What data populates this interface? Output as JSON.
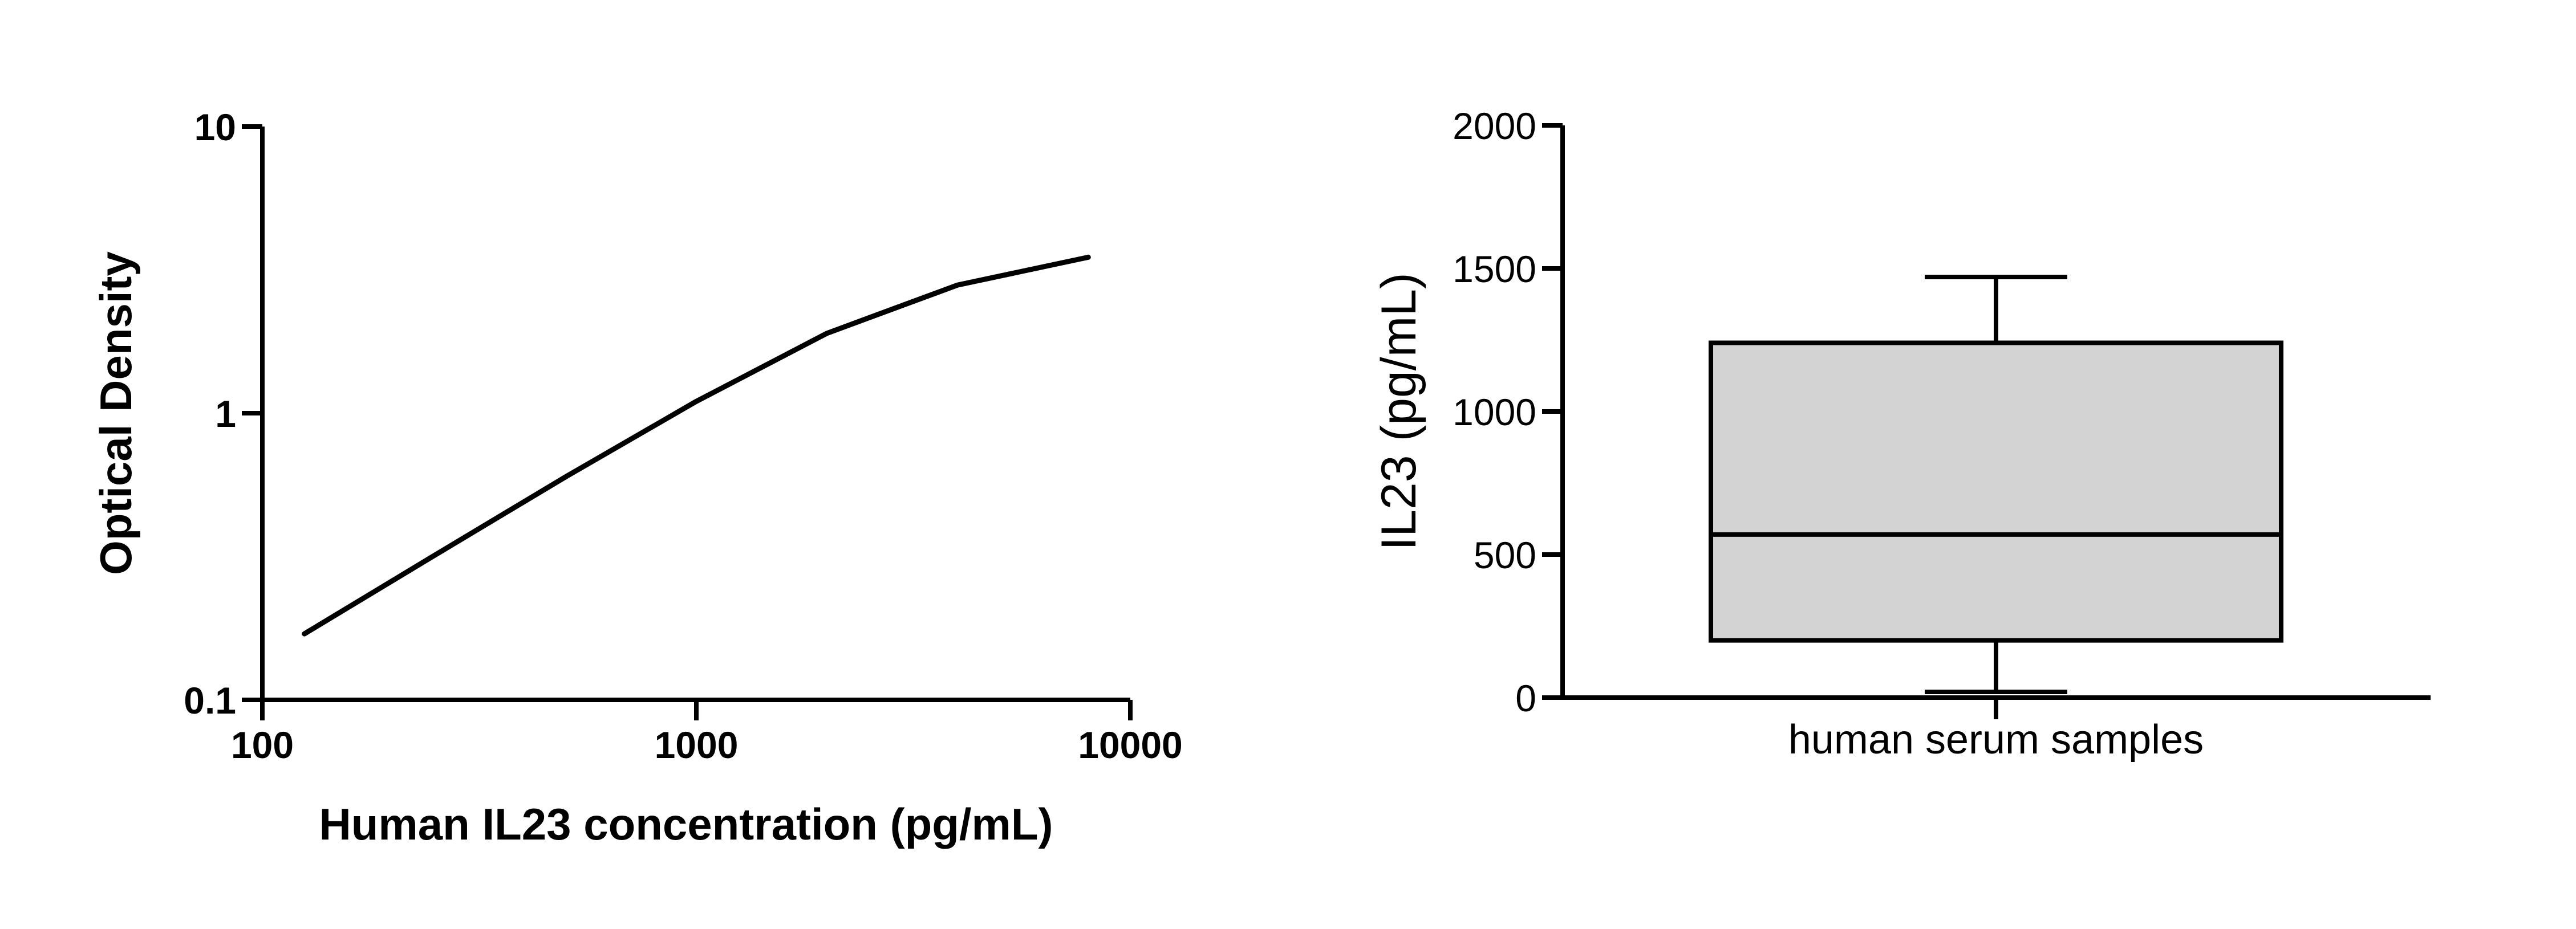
{
  "colors": {
    "line": "#000000",
    "box_fill": "#d3d3d3",
    "background": "#ffffff"
  },
  "chart_data": [
    {
      "type": "line",
      "title": "",
      "xlabel": "Human IL23 concentration (pg/mL)",
      "ylabel": "Optical Density",
      "xscale": "log",
      "yscale": "log",
      "xlim": [
        100,
        10000
      ],
      "ylim": [
        0.1,
        10
      ],
      "xticks": [
        "100",
        "1000",
        "10000"
      ],
      "yticks": [
        "0.1",
        "1",
        "10"
      ],
      "grid": false,
      "series": [
        {
          "x": [
            125,
            250,
            500,
            1000,
            2000,
            4000,
            8000
          ],
          "y": [
            0.17,
            0.32,
            0.6,
            1.1,
            1.9,
            2.8,
            3.5
          ]
        }
      ]
    },
    {
      "type": "box",
      "title": "",
      "xlabel": "",
      "ylabel": "IL23 (pg/mL)",
      "ylim": [
        0,
        2000
      ],
      "yticks": [
        "0",
        "500",
        "1000",
        "1500",
        "2000"
      ],
      "grid": false,
      "categories": [
        "human serum samples"
      ],
      "boxes": [
        {
          "whisker_low": 20,
          "q1": 200,
          "median": 570,
          "q3": 1240,
          "whisker_high": 1470
        }
      ]
    }
  ]
}
